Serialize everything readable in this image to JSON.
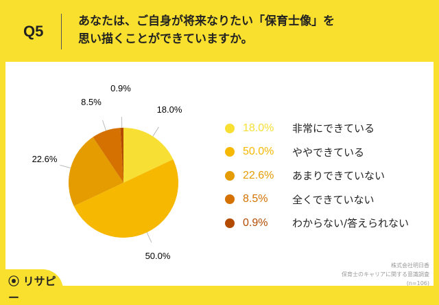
{
  "question_no": "Q5",
  "title_lines": [
    "あなたは、ご自身が将来なりたい「保育士像」を",
    "思い描くことができていますか。"
  ],
  "chart_data": {
    "type": "pie",
    "categories": [
      "非常にできている",
      "ややできている",
      "あまりできていない",
      "全くできていない",
      "わからない/答えられない"
    ],
    "values": [
      18.0,
      50.0,
      22.6,
      8.5,
      0.9
    ],
    "labels": [
      "18.0%",
      "50.0%",
      "22.6%",
      "8.5%",
      "0.9%"
    ],
    "colors": [
      "#f7df34",
      "#f6b800",
      "#e59c00",
      "#d47100",
      "#b24b00"
    ],
    "legend": "right"
  },
  "source": [
    "株式会社明日香",
    "保育士のキャリアに関する意識調査",
    "(n=106)"
  ],
  "logo": "リサピー"
}
